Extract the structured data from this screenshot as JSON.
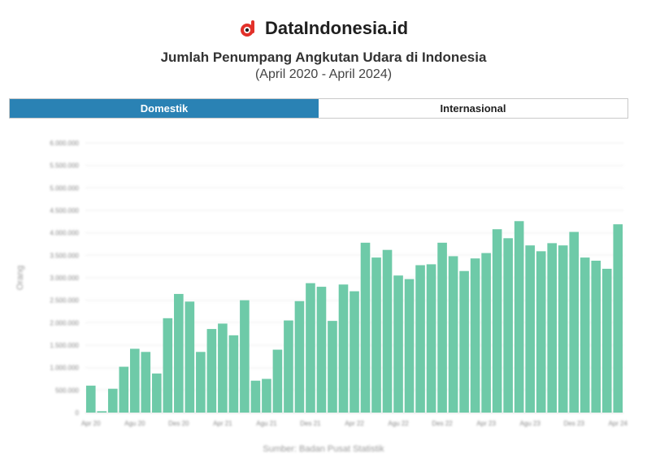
{
  "header": {
    "brand_name": "DataIndonesia.id",
    "title": "Jumlah Penumpang Angkutan Udara di Indonesia",
    "subtitle": "(April 2020 - April 2024)"
  },
  "tabs": [
    {
      "label": "Domestik",
      "active": true
    },
    {
      "label": "Internasional",
      "active": false
    }
  ],
  "source": "Sumber: Badan Pusat Statistik",
  "colors": {
    "bar": "#6ecaa8",
    "tab_active": "#2a82b4",
    "brand_red": "#e2312a"
  },
  "chart_data": {
    "type": "bar",
    "title": "Jumlah Penumpang Angkutan Udara di Indonesia",
    "subtitle": "(April 2020 - April 2024)",
    "ylabel": "Orang",
    "xlabel": "",
    "ylim": [
      0,
      6000000
    ],
    "yticks": [
      0,
      500000,
      1000000,
      1500000,
      2000000,
      2500000,
      3000000,
      3500000,
      4000000,
      4500000,
      5000000,
      5500000,
      6000000
    ],
    "ytick_labels": [
      "0",
      "500.000",
      "1.000.000",
      "1.500.000",
      "2.000.000",
      "2.500.000",
      "3.000.000",
      "3.500.000",
      "4.000.000",
      "4.500.000",
      "5.000.000",
      "5.500.000",
      "6.000.000"
    ],
    "xtick_labels": [
      "Apr 20",
      "Agu 20",
      "Des 20",
      "Apr 21",
      "Agu 21",
      "Des 21",
      "Apr 22",
      "Agu 22",
      "Des 22",
      "Apr 23",
      "Agu 23",
      "Des 23",
      "Apr 24"
    ],
    "xtick_every": 4,
    "grid": true,
    "series": [
      {
        "values": [
          600000,
          30000,
          530000,
          1020000,
          1420000,
          1350000,
          870000,
          2100000,
          2640000,
          2470000,
          1350000,
          1860000,
          1980000,
          1720000,
          2500000,
          710000,
          750000,
          1400000,
          2050000,
          2480000,
          2880000,
          2800000,
          2040000,
          2850000,
          2700000,
          3780000,
          3450000,
          3620000,
          3050000,
          2970000,
          3280000,
          3300000,
          3780000,
          3480000,
          3150000,
          3430000,
          3550000,
          4080000,
          3880000,
          4260000,
          3720000,
          3590000,
          3770000,
          3720000,
          4020000,
          3450000,
          3380000,
          3200000,
          4190000
        ]
      }
    ]
  }
}
